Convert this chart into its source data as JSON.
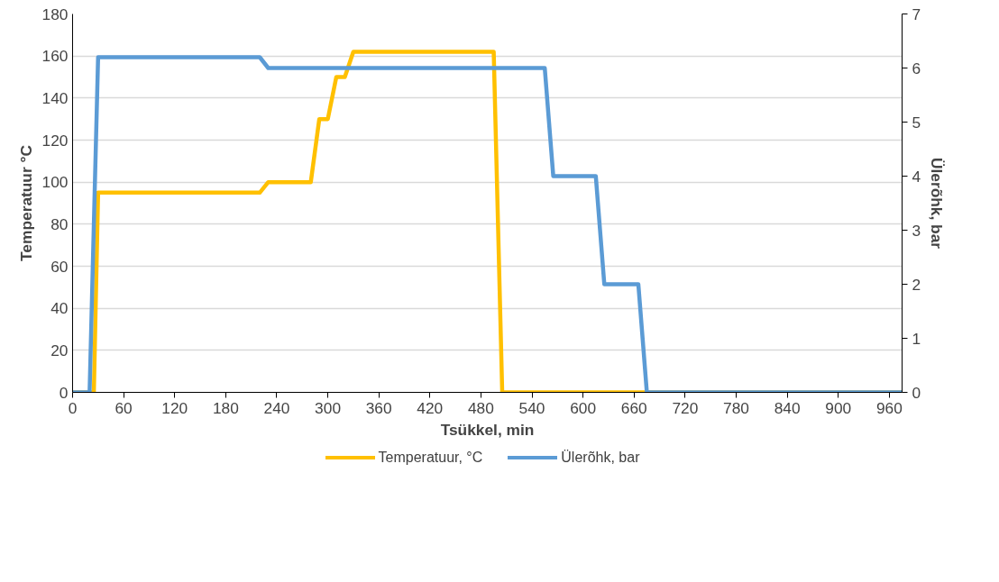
{
  "chart_data": {
    "type": "line",
    "xlabel": "Tsükkel, min",
    "ylabel": "Temperatuur °C",
    "y2label": "Ülerõhk, bar",
    "xlim": [
      0,
      975
    ],
    "xticks": [
      0,
      60,
      120,
      180,
      240,
      300,
      360,
      420,
      480,
      540,
      600,
      660,
      720,
      780,
      840,
      900,
      960
    ],
    "ylim": [
      0,
      180
    ],
    "yticks": [
      0,
      20,
      40,
      60,
      80,
      100,
      120,
      140,
      160,
      180
    ],
    "y2lim": [
      0,
      7
    ],
    "y2ticks": [
      0,
      1,
      2,
      3,
      4,
      5,
      6,
      7
    ],
    "grid": "y",
    "legend": "bottom",
    "marker": "none",
    "line_style": "solid",
    "series": [
      {
        "name": "Temperatuur, °C",
        "color": "#ffc000",
        "x": [
          0,
          25,
          30,
          220,
          230,
          280,
          290,
          300,
          310,
          320,
          330,
          495,
          505,
          975
        ],
        "values": [
          0,
          0,
          95,
          95,
          100,
          100,
          130,
          130,
          150,
          150,
          162,
          162,
          0,
          0
        ]
      },
      {
        "name": "Ülerõhk, bar",
        "color": "#5b9bd5",
        "axis": "y2",
        "x": [
          0,
          20,
          30,
          220,
          230,
          555,
          565,
          615,
          625,
          665,
          675,
          975
        ],
        "values": [
          0,
          0,
          6.2,
          6.2,
          6.0,
          6.0,
          4,
          4,
          2,
          2,
          0,
          0
        ]
      }
    ]
  }
}
